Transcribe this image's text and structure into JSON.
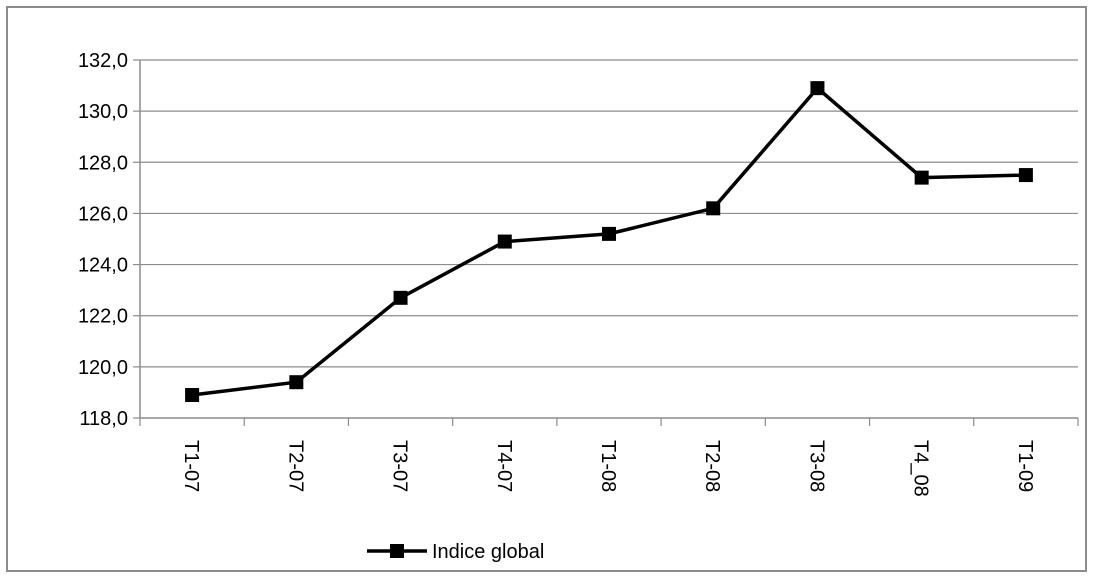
{
  "chart_data": {
    "type": "line",
    "categories": [
      "T1-07",
      "T2-07",
      "T3-07",
      "T4-07",
      "T1-08",
      "T2-08",
      "T3-08",
      "T4_08",
      "T1-09"
    ],
    "series": [
      {
        "name": "Indice global",
        "values": [
          118.9,
          119.4,
          122.7,
          124.9,
          125.2,
          126.2,
          130.9,
          127.4,
          127.5
        ],
        "color": "#000000",
        "marker": "square"
      }
    ],
    "title": "",
    "xlabel": "",
    "ylabel": "",
    "ylim": [
      118.0,
      132.0
    ],
    "yticks": [
      "118,0",
      "120,0",
      "122,0",
      "124,0",
      "126,0",
      "128,0",
      "130,0",
      "132,0"
    ],
    "grid": true,
    "legend_position": "bottom-left"
  }
}
